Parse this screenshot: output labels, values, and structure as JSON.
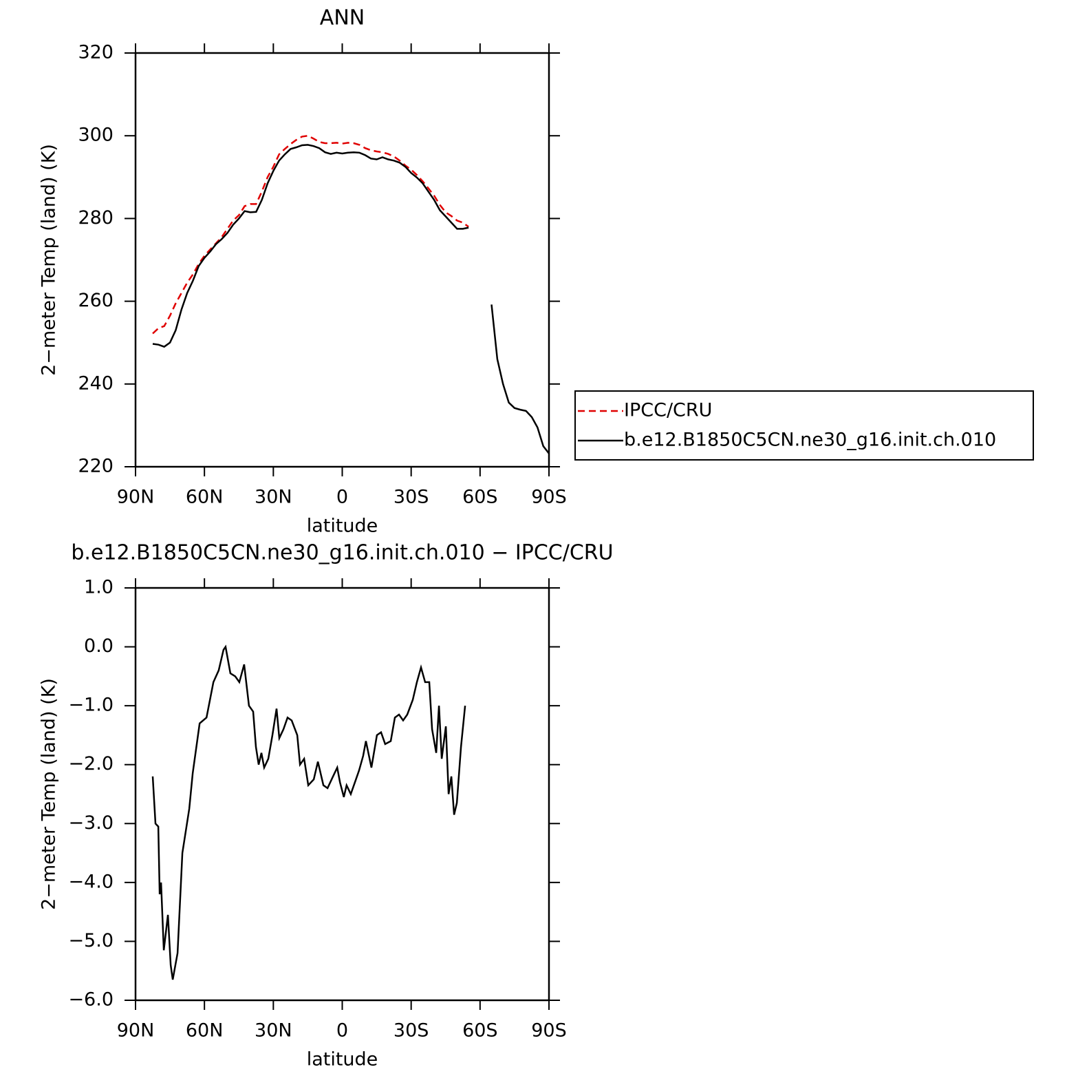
{
  "chart_data": [
    {
      "type": "line",
      "title": "ANN",
      "x_label": "latitude",
      "y_label": "2−meter Temp (land) (K)",
      "x": [
        82.5,
        80,
        77.5,
        75,
        72.5,
        70,
        67.5,
        65,
        62.5,
        60,
        57.5,
        55,
        52.5,
        50,
        47.5,
        45,
        42.5,
        40,
        37.5,
        35,
        32.5,
        30,
        27.5,
        25,
        22.5,
        20,
        17.5,
        15,
        12.5,
        10,
        7.5,
        5,
        2.5,
        0,
        -2.5,
        -5,
        -7.5,
        -10,
        -12.5,
        -15,
        -17.5,
        -20,
        -22.5,
        -25,
        -27.5,
        -30,
        -32.5,
        -35,
        -37.5,
        -40,
        -42.5,
        -45,
        -47.5,
        -50,
        -52.5,
        -55,
        -57.5,
        -60,
        -62.5,
        -65,
        -67.5,
        -70,
        -72.5,
        -75,
        -77.5,
        -80,
        -82.5,
        -85,
        -87.5,
        -90
      ],
      "series": [
        {
          "name": "IPCC/CRU",
          "color": "#e00000",
          "style": "dashed",
          "values": [
            252.2,
            253.5,
            254,
            256.5,
            259.5,
            262,
            264.5,
            266.5,
            269,
            271,
            272.5,
            274,
            275.5,
            277.5,
            279.5,
            280.8,
            283,
            283.5,
            283.5,
            286.5,
            290,
            292.5,
            295.5,
            296.8,
            298,
            299,
            299.8,
            300,
            299.3,
            298.5,
            298.2,
            298.2,
            298.3,
            298.1,
            298.3,
            298.2,
            297.8,
            297,
            296.5,
            296.2,
            296,
            295.6,
            295,
            294,
            292.8,
            291.8,
            290.5,
            289,
            287.3,
            285.5,
            283.3,
            281.5,
            280.6,
            279.5,
            279,
            278,
            null,
            null,
            null,
            null,
            null,
            null,
            null,
            null,
            null,
            null,
            null,
            null,
            null,
            null
          ]
        },
        {
          "name": "b.e12.B1850C5CN.ne30_g16.init.ch.010",
          "color": "#000000",
          "style": "solid",
          "values": [
            249.7,
            249.5,
            249,
            250,
            253,
            258,
            262,
            265,
            268.5,
            270.5,
            272,
            273.8,
            275,
            276.5,
            278.5,
            280,
            281.8,
            281.5,
            281.6,
            284.5,
            288.5,
            291.5,
            294,
            295.5,
            296.8,
            297.2,
            297.7,
            297.8,
            297.5,
            297,
            296,
            295.6,
            295.9,
            295.7,
            295.9,
            296,
            295.9,
            295.3,
            294.5,
            294.3,
            294.8,
            294.3,
            294,
            293.5,
            292.5,
            291,
            289.9,
            288.5,
            286.5,
            284.5,
            282,
            280.5,
            279,
            277.5,
            277.5,
            277.8,
            null,
            null,
            null,
            259.2,
            246,
            240,
            235.5,
            234.2,
            233.8,
            233.5,
            232,
            229.5,
            225,
            223.2
          ]
        }
      ],
      "xlim": [
        90,
        -90
      ],
      "xticks": [
        {
          "value": 90,
          "label": "90N"
        },
        {
          "value": 60,
          "label": "60N"
        },
        {
          "value": 30,
          "label": "30N"
        },
        0,
        {
          "value": -30,
          "label": "30S"
        },
        {
          "value": -60,
          "label": "60S"
        },
        {
          "value": -90,
          "label": "90S"
        }
      ],
      "ylim": [
        220,
        320
      ],
      "yticks": [
        220,
        240,
        260,
        280,
        300,
        320
      ],
      "legend": "right"
    },
    {
      "type": "line",
      "title": "b.e12.B1850C5CN.ne30_g16.init.ch.010 − IPCC/CRU",
      "x_label": "latitude",
      "y_label": "2−meter Temp (land) (K)",
      "x": [
        82.5,
        81.3,
        80.1,
        79.5,
        78.9,
        77.7,
        75.9,
        74.7,
        73.8,
        71.7,
        69.6,
        66.6,
        65.1,
        62.1,
        59.1,
        56.1,
        53.8,
        51.7,
        50.8,
        48.7,
        46.6,
        44.8,
        42.7,
        40.6,
        38.8,
        37.6,
        36.4,
        35.2,
        34.0,
        32.2,
        30.4,
        28.6,
        27.4,
        25.6,
        23.8,
        22.0,
        19.6,
        18.4,
        16.6,
        14.8,
        12.4,
        10.6,
        8.2,
        6.4,
        4.0,
        2.2,
        1.0,
        -0.7,
        -1.9,
        -3.7,
        -5.5,
        -7.3,
        -9.1,
        -10.3,
        -12.7,
        -15.1,
        -16.9,
        -18.7,
        -21.1,
        -22.9,
        -24.7,
        -26.5,
        -28.3,
        -30.7,
        -32.5,
        -34.3,
        -36.1,
        -37.9,
        -39.1,
        -40.9,
        -42.1,
        -43.3,
        -45.1,
        -46.3,
        -47.5,
        -48.7,
        -49.9,
        -51.7,
        -53.5
      ],
      "values": [
        -2.2,
        -3.0,
        -3.05,
        -4.2,
        -4.0,
        -5.15,
        -4.55,
        -5.4,
        -5.65,
        -5.2,
        -3.5,
        -2.75,
        -2.15,
        -1.3,
        -1.2,
        -0.6,
        -0.4,
        -0.05,
        0,
        -0.45,
        -0.5,
        -0.6,
        -0.3,
        -1.0,
        -1.1,
        -1.7,
        -2.0,
        -1.8,
        -2.05,
        -1.9,
        -1.5,
        -1.05,
        -1.55,
        -1.4,
        -1.2,
        -1.25,
        -1.5,
        -2.0,
        -1.9,
        -2.35,
        -2.25,
        -1.95,
        -2.35,
        -2.4,
        -2.2,
        -2.05,
        -2.3,
        -2.55,
        -2.35,
        -2.5,
        -2.3,
        -2.1,
        -1.85,
        -1.6,
        -2.05,
        -1.5,
        -1.45,
        -1.65,
        -1.6,
        -1.2,
        -1.15,
        -1.25,
        -1.15,
        -0.9,
        -0.6,
        -0.35,
        -0.6,
        -0.6,
        -1.4,
        -1.8,
        -1.0,
        -1.9,
        -1.35,
        -2.5,
        -2.2,
        -2.85,
        -2.65,
        -1.7,
        -1.0
      ],
      "color": "#000000",
      "xlim": [
        90,
        -90
      ],
      "xticks": [
        {
          "value": 90,
          "label": "90N"
        },
        {
          "value": 60,
          "label": "60N"
        },
        {
          "value": 30,
          "label": "30N"
        },
        0,
        {
          "value": -30,
          "label": "30S"
        },
        {
          "value": -60,
          "label": "60S"
        },
        {
          "value": -90,
          "label": "90S"
        }
      ],
      "ylim": [
        -6,
        1
      ],
      "yticks": [
        {
          "value": -6,
          "label": "−6.0"
        },
        {
          "value": -5,
          "label": "−5.0"
        },
        {
          "value": -4,
          "label": "−4.0"
        },
        {
          "value": -3,
          "label": "−3.0"
        },
        {
          "value": -2,
          "label": "−2.0"
        },
        {
          "value": -1,
          "label": "−1.0"
        },
        {
          "value": 0,
          "label": "0.0"
        },
        {
          "value": 1,
          "label": "1.0"
        }
      ]
    }
  ]
}
